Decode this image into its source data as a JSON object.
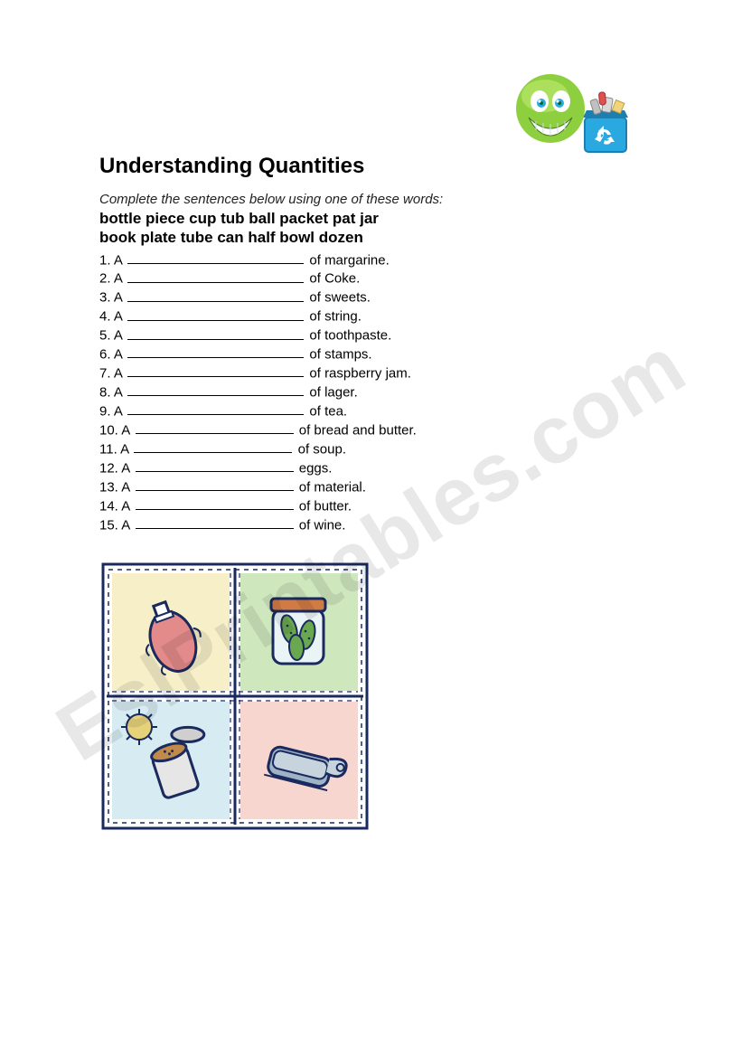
{
  "title": "Understanding Quantities",
  "instructions": "Complete the sentences below using one of these words:",
  "wordbank_line1": "bottle piece cup tub ball packet pat jar",
  "wordbank_line2": "book plate tube can half bowl dozen",
  "items": [
    {
      "num": "1.",
      "prefix": "A",
      "suffix": "of margarine."
    },
    {
      "num": "2.",
      "prefix": "A",
      "suffix": "of Coke."
    },
    {
      "num": "3.",
      "prefix": "A",
      "suffix": "of sweets."
    },
    {
      "num": "4.",
      "prefix": "A",
      "suffix": "of string."
    },
    {
      "num": "5.",
      "prefix": "A",
      "suffix": "of toothpaste."
    },
    {
      "num": "6.",
      "prefix": "A",
      "suffix": "of stamps."
    },
    {
      "num": "7.",
      "prefix": "A",
      "suffix": "of raspberry jam."
    },
    {
      "num": "8.",
      "prefix": "A",
      "suffix": "of lager."
    },
    {
      "num": "9.",
      "prefix": "A",
      "suffix": "of tea."
    },
    {
      "num": "10.",
      "prefix": "A",
      "suffix": "of bread and butter."
    },
    {
      "num": "11.",
      "prefix": "A",
      "suffix": "of soup."
    },
    {
      "num": "12.",
      "prefix": "A",
      "suffix": "eggs."
    },
    {
      "num": "13.",
      "prefix": "A",
      "suffix": "of material."
    },
    {
      "num": "14.",
      "prefix": "A",
      "suffix": "of butter."
    },
    {
      "num": "15.",
      "prefix": "A",
      "suffix": "of wine."
    }
  ],
  "watermark": "EslPrintables.com",
  "corner_art": {
    "face_color": "#8ecf3f",
    "face_highlight": "#b9e56a",
    "eye_color": "#2aa9e0",
    "bin_color": "#2aa9e0",
    "bin_dark": "#1c7fb0",
    "recycle_symbol": "#ffffff",
    "can_color": "#d9d9d9",
    "bottle_color": "#c0c0c0",
    "paper_color": "#f2d27a"
  },
  "grid_art": {
    "outline": "#1a2a5e",
    "stitch": "#1a2a5e",
    "tiles": [
      {
        "bg": "#f7efc8",
        "item": "ketchup",
        "item_colors": {
          "body": "#e38a8a",
          "cap": "#ffffff",
          "outline": "#1a2a5e"
        }
      },
      {
        "bg": "#cfe7bd",
        "item": "pickle_jar",
        "item_colors": {
          "jar": "#d9eef2",
          "lid": "#d07a45",
          "pickles": "#6aa84f",
          "outline": "#1a2a5e"
        }
      },
      {
        "bg": "#d6ecf2",
        "item": "open_can_beans",
        "item_colors": {
          "can": "#e6e6e6",
          "lid": "#cfcfcf",
          "beans": "#c28a4a",
          "sun": "#e6d27a",
          "outline": "#1a2a5e"
        }
      },
      {
        "bg": "#f6d6cf",
        "item": "sardine_tin",
        "item_colors": {
          "tin": "#9fb3c6",
          "lid": "#c7d4de",
          "outline": "#1a2a5e"
        }
      }
    ]
  }
}
